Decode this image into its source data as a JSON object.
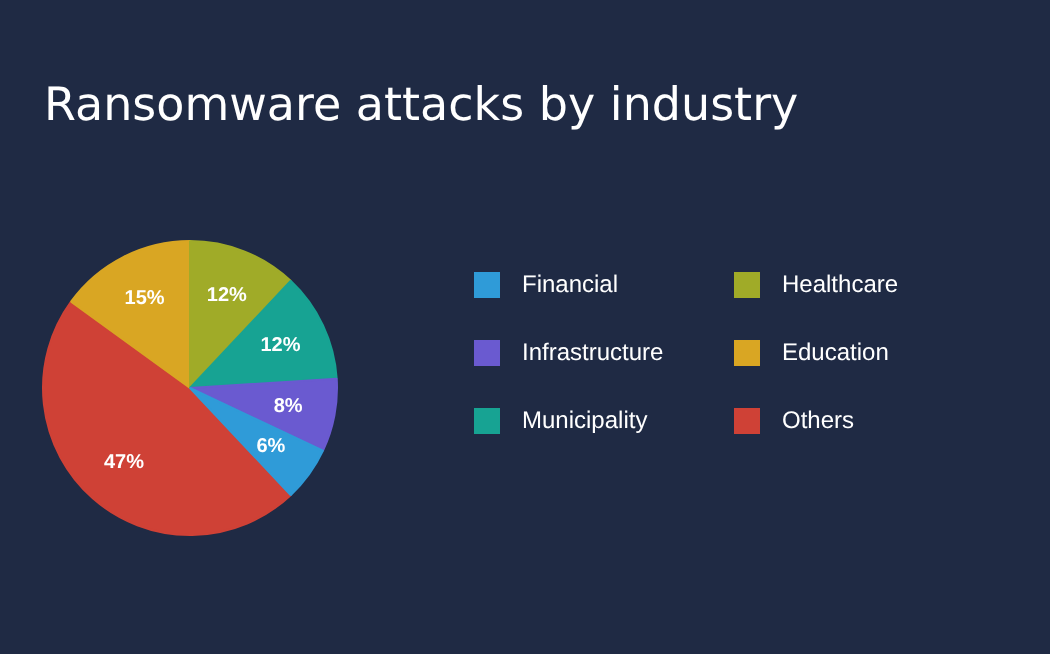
{
  "chart_data": {
    "type": "pie",
    "title": "Ransomware attacks by industry",
    "categories": [
      "Financial",
      "Infrastructure",
      "Municipality",
      "Healthcare",
      "Education",
      "Others"
    ],
    "values": [
      6,
      8,
      12,
      12,
      15,
      47
    ],
    "value_labels": [
      "6%",
      "8%",
      "12%",
      "12%",
      "15%",
      "47%"
    ],
    "colors": [
      "#2f9bd8",
      "#6a5ad0",
      "#17a393",
      "#a0ab28",
      "#d9a623",
      "#cf4136"
    ],
    "legend": "right"
  }
}
